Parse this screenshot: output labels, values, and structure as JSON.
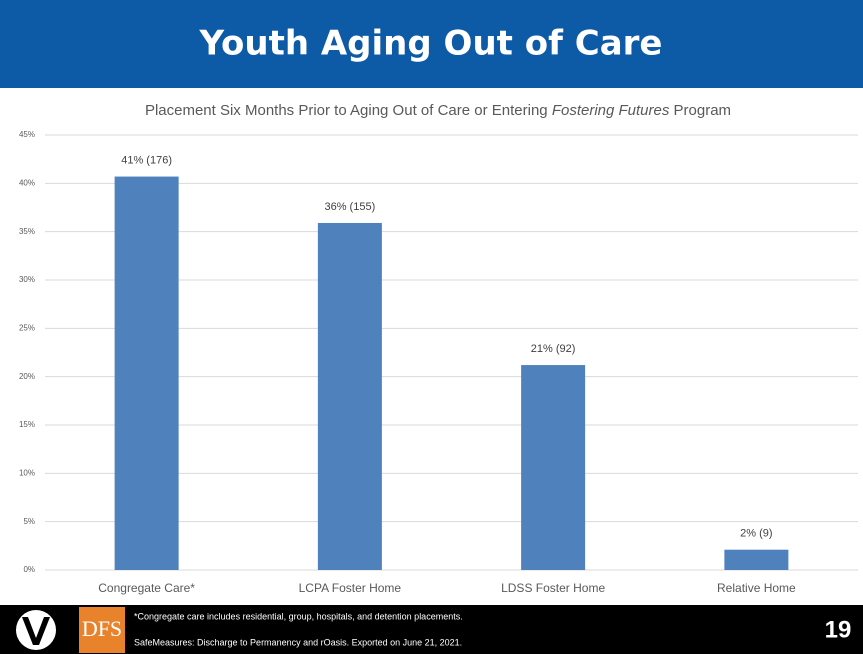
{
  "header": {
    "title": "Youth Aging Out of Care"
  },
  "chart_data": {
    "type": "bar",
    "subtitle": [
      "Placement Six Months Prior to Aging Out of Care or Entering ",
      "Fostering Futures",
      " Program"
    ],
    "categories": [
      "Congregate Care*",
      "LCPA Foster Home",
      "LDSS Foster Home",
      "Relative Home"
    ],
    "values": [
      40.7,
      35.9,
      21.2,
      2.1
    ],
    "value_labels": [
      "41% (176)",
      "36% (155)",
      "21% (92)",
      "2% (9)"
    ],
    "color": "#4f81bd",
    "ylim": [
      0,
      45
    ],
    "yticks": [
      {
        "value": 0,
        "label": "0%"
      },
      {
        "value": 5,
        "label": "5%"
      },
      {
        "value": 10,
        "label": "10%"
      },
      {
        "value": 15,
        "label": "15%"
      },
      {
        "value": 20,
        "label": "20%"
      },
      {
        "value": 25,
        "label": "25%"
      },
      {
        "value": 30,
        "label": "30%"
      },
      {
        "value": 35,
        "label": "35%"
      },
      {
        "value": 40,
        "label": "40%"
      },
      {
        "value": 45,
        "label": "45%"
      }
    ],
    "grid": true
  },
  "footer": {
    "logo": "DFS",
    "notes": [
      "*Congregate care includes residential, group, hospitals, and detention placements.",
      "SafeMeasures: Discharge to Permanency and rOasis. Exported on June 21, 2021."
    ],
    "page_number": "19"
  }
}
